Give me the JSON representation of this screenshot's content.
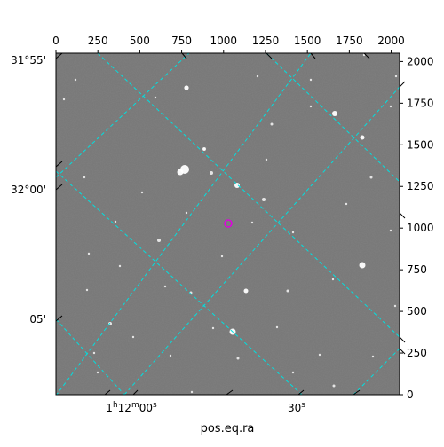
{
  "figure": {
    "xlabel": "pos.eq.ra",
    "top_ticks": [
      "0",
      "250",
      "500",
      "750",
      "1000",
      "1250",
      "1500",
      "1750",
      "2000"
    ],
    "right_ticks": [
      "2000",
      "1750",
      "1500",
      "1250",
      "1000",
      "750",
      "500",
      "250",
      "0"
    ],
    "dec_labels": [
      "31°55'",
      "32°00'",
      "05'"
    ],
    "ra_labels": {
      "first": {
        "h": "1",
        "h_unit": "h",
        "m": "12",
        "m_unit": "m",
        "s": "00",
        "s_unit": "s"
      },
      "second": {
        "s": "30",
        "s_unit": "s"
      }
    },
    "pixel_range": [
      0,
      2000
    ],
    "target_marker_pixel": [
      1030,
      1000
    ],
    "colors": {
      "frame": "#000000",
      "background": "#767676",
      "grid": "#00e0e0",
      "marker": "#e000e0",
      "stars": "#ffffff"
    }
  }
}
